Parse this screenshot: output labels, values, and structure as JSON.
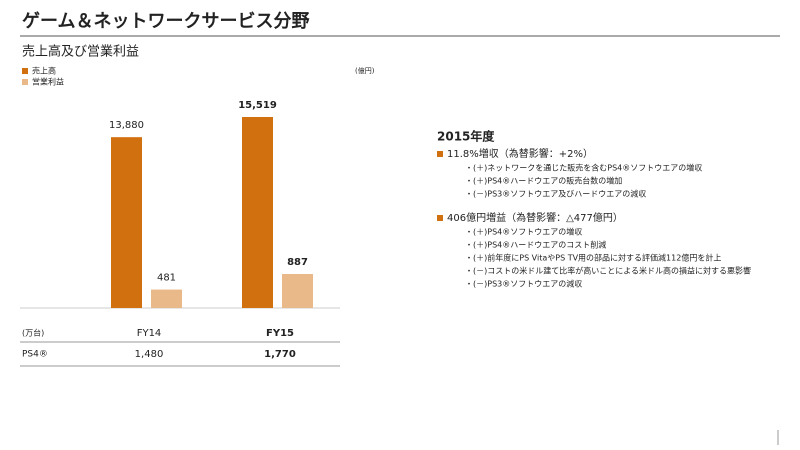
{
  "header": {
    "title": "ゲーム＆ネットワークサービス分野",
    "subtitle": "売上高及び営業利益"
  },
  "chart_data": {
    "type": "bar",
    "unit": "(億円)",
    "categories": [
      "FY14",
      "FY15"
    ],
    "series": [
      {
        "name": "売上高",
        "color": "#d0700e",
        "values": [
          13880,
          15519
        ],
        "value_labels": [
          "13,880",
          "15,519"
        ]
      },
      {
        "name": "営業利益",
        "color": "#eab98a",
        "values": [
          481,
          887
        ],
        "value_labels": [
          "481",
          "887"
        ]
      }
    ]
  },
  "table": {
    "header": [
      "(万台)",
      "FY14",
      "FY15"
    ],
    "rows": [
      [
        "PS4®",
        "1,480",
        "1,770"
      ]
    ]
  },
  "notes": {
    "heading": "2015年度",
    "bullets": [
      {
        "text": "11.8%増収（為替影響：+2%）",
        "items": [
          "・(＋)ネットワークを通じた販売を含むPS4®ソフトウエアの増収",
          "・(＋)PS4®ハードウエアの販売台数の増加",
          "・(－)PS3®ソフトウエア及びハードウエアの減収"
        ]
      },
      {
        "text": "406億円増益（為替影響：△477億円）",
        "items": [
          "・(＋)PS4®ソフトウエアの増収",
          "・(＋)PS4®ハードウエアのコスト削減",
          "・(＋)前年度にPS VitaやPS TV用の部品に対する評価減112億円を計上",
          "・(－)コストの米ドル建て比率が高いことによる米ドル高の損益に対する悪影響",
          "・(－)PS3®ソフトウエアの減収"
        ]
      }
    ]
  }
}
